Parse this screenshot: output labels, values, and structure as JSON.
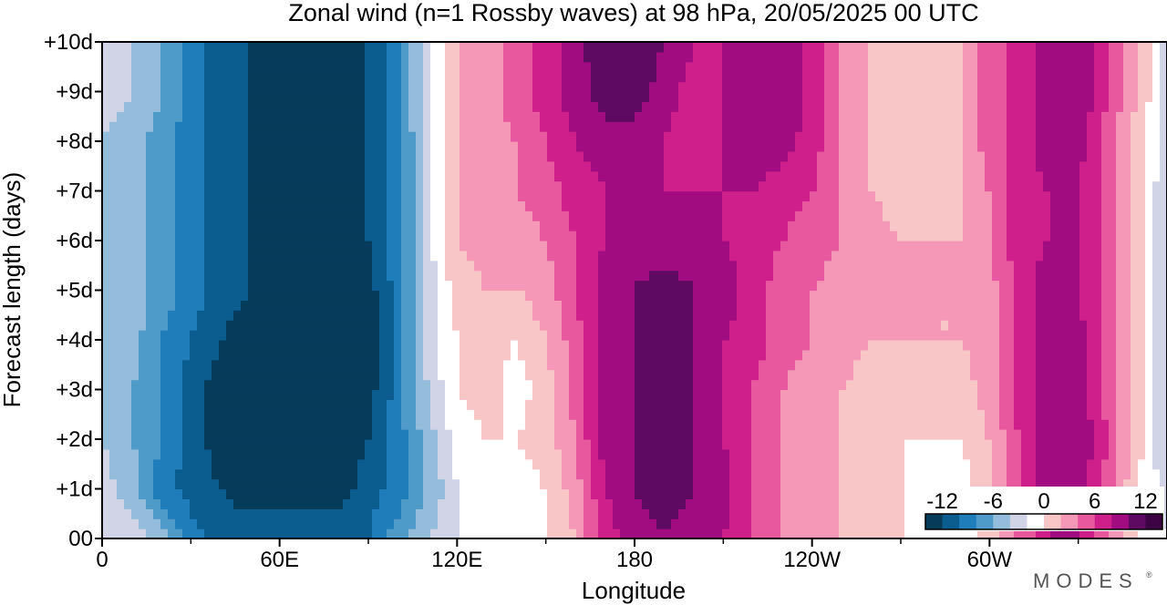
{
  "chart_data": {
    "type": "heatmap",
    "title": "Zonal wind (n=1 Rossby waves) at 98 hPa,  20/05/2025  00 UTC",
    "xlabel": "Longitude",
    "ylabel": "Forecast length (days)",
    "x_ticks": [
      "0",
      "60E",
      "120E",
      "180",
      "120W",
      "60W"
    ],
    "x_tick_values": [
      0,
      60,
      120,
      180,
      240,
      300
    ],
    "y_ticks": [
      "00",
      "+1d",
      "+2d",
      "+3d",
      "+4d",
      "+5d",
      "+6d",
      "+7d",
      "+8d",
      "+9d",
      "+10d"
    ],
    "y_tick_values": [
      0,
      1,
      2,
      3,
      4,
      5,
      6,
      7,
      8,
      9,
      10
    ],
    "xlim": [
      0,
      360
    ],
    "ylim": [
      0,
      10
    ],
    "grid": false,
    "longitudes": [
      0,
      10,
      20,
      30,
      40,
      50,
      60,
      70,
      80,
      90,
      100,
      110,
      120,
      130,
      140,
      150,
      160,
      170,
      180,
      190,
      200,
      210,
      220,
      230,
      240,
      250,
      260,
      270,
      280,
      290,
      300,
      310,
      320,
      330,
      340,
      350,
      360
    ],
    "forecast_days": [
      0,
      1,
      2,
      3,
      4,
      5,
      6,
      7,
      8,
      9,
      10
    ],
    "u_wind": [
      [
        -2,
        -3,
        -5,
        -9,
        -11,
        -11,
        -11,
        -11,
        -11,
        -10,
        -7,
        -4,
        -2,
        -2,
        -2,
        0,
        2,
        7,
        9,
        10,
        9,
        8,
        6,
        4,
        3,
        2,
        1,
        0,
        -1,
        -1,
        1,
        4,
        8,
        8,
        4,
        0,
        -2
      ],
      [
        -3,
        -5,
        -9,
        -11,
        -12,
        -13,
        -13,
        -13,
        -13,
        -11,
        -9,
        -6,
        -2,
        -1,
        -1,
        0,
        3,
        8,
        10,
        11,
        10,
        9,
        6,
        4,
        3,
        2,
        1,
        0,
        -1,
        -1,
        1,
        6,
        9,
        9,
        5,
        0,
        -3
      ],
      [
        -4,
        -6,
        -8,
        -11,
        -13,
        -14,
        -14,
        -14,
        -14,
        -12,
        -9,
        -5,
        -1,
        0,
        0,
        1,
        4,
        9,
        10,
        11,
        10,
        8,
        6,
        4,
        3,
        2,
        1,
        0,
        0,
        0,
        2,
        6,
        10,
        10,
        6,
        1,
        -4
      ],
      [
        -4,
        -6,
        -8,
        -11,
        -13,
        -14,
        -14,
        -14,
        -14,
        -13,
        -9,
        -4,
        0,
        1,
        -1,
        1,
        5,
        9,
        10,
        11,
        10,
        8,
        6,
        4,
        3,
        2,
        1,
        1,
        1,
        1,
        3,
        7,
        9,
        9,
        5,
        1,
        -4
      ],
      [
        -4,
        -5,
        -8,
        -10,
        -12,
        -13,
        -14,
        -14,
        -14,
        -13,
        -9,
        -3,
        0,
        1,
        0,
        2,
        5,
        9,
        10,
        12,
        10,
        8,
        7,
        5,
        4,
        3,
        2,
        2,
        2,
        2,
        3,
        7,
        9,
        9,
        5,
        1,
        -4
      ],
      [
        -4,
        -5,
        -7,
        -9,
        -11,
        -12,
        -13,
        -14,
        -14,
        -13,
        -9,
        -3,
        1,
        2,
        2,
        3,
        6,
        9,
        10,
        11,
        10,
        9,
        7,
        5,
        4,
        3,
        2,
        2,
        2,
        2,
        3,
        7,
        9,
        8,
        5,
        1,
        -4
      ],
      [
        -4,
        -5,
        -7,
        -9,
        -11,
        -12,
        -13,
        -13,
        -13,
        -12,
        -9,
        -3,
        2,
        3,
        3,
        4,
        6,
        8,
        9,
        9,
        9,
        8,
        7,
        6,
        5,
        4,
        3,
        2,
        2,
        2,
        4,
        7,
        8,
        8,
        5,
        1,
        -4
      ],
      [
        -4,
        -5,
        -7,
        -9,
        -11,
        -12,
        -13,
        -14,
        -14,
        -12,
        -9,
        -3,
        2,
        3,
        4,
        5,
        7,
        8,
        8,
        8,
        8,
        8,
        8,
        7,
        6,
        4,
        2,
        1,
        1,
        2,
        4,
        7,
        8,
        8,
        5,
        1,
        -4
      ],
      [
        -4,
        -5,
        -7,
        -9,
        -11,
        -12,
        -13,
        -14,
        -14,
        -12,
        -9,
        -3,
        2,
        3,
        4,
        6,
        8,
        9,
        9,
        8,
        7,
        8,
        9,
        9,
        7,
        4,
        2,
        1,
        1,
        2,
        5,
        7,
        9,
        9,
        5,
        1,
        -3
      ],
      [
        -3,
        -4,
        -6,
        -9,
        -11,
        -12,
        -13,
        -14,
        -14,
        -12,
        -8,
        -3,
        2,
        3,
        5,
        7,
        9,
        11,
        11,
        9,
        7,
        8,
        9,
        10,
        7,
        4,
        2,
        1,
        1,
        2,
        5,
        7,
        9,
        10,
        6,
        2,
        -3
      ],
      [
        -3,
        -4,
        -6,
        -9,
        -11,
        -12,
        -13,
        -14,
        -14,
        -12,
        -8,
        -3,
        2,
        3,
        5,
        7,
        9,
        12,
        12,
        10,
        8,
        8,
        9,
        10,
        7,
        4,
        2,
        1,
        1,
        2,
        5,
        7,
        9,
        10,
        6,
        2,
        -3
      ]
    ],
    "colorbar": {
      "tick_labels": [
        "-12",
        "-6",
        "0",
        "6",
        "12"
      ],
      "tick_values": [
        -12,
        -6,
        0,
        6,
        12
      ],
      "levels": [
        -14,
        -12,
        -10,
        -8,
        -6,
        -4,
        -2,
        0,
        2,
        4,
        6,
        8,
        10,
        12,
        14
      ],
      "colors": [
        "#073b5a",
        "#0b5d8f",
        "#1f7db9",
        "#4e9ac8",
        "#94bddb",
        "#d0d4e6",
        "#ffffff",
        "#f8c6c6",
        "#f597b6",
        "#e8589f",
        "#cf1f8a",
        "#a10c80",
        "#5e0a63",
        "#3d0345"
      ]
    }
  },
  "watermark": "MODES"
}
